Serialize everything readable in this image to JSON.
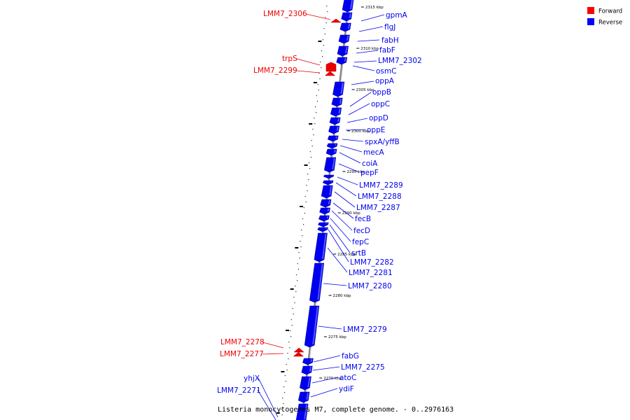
{
  "legend": [
    {
      "label": "Forward",
      "color": "#ff0000"
    },
    {
      "label": "Reverse",
      "color": "#0000ff"
    }
  ],
  "caption": "Listeria monocytogenes M7, complete genome. - 0..2976163",
  "colors": {
    "forward": "#ee0000",
    "reverse": "#0000ee",
    "backbone": "#888888"
  },
  "ticks": [
    "2315 kbp",
    "2310 kbp",
    "2305 kbp",
    "2300 kbp",
    "2295 kbp",
    "2290 kbp",
    "2285 kbp",
    "2280 kbp",
    "2275 kbp",
    "2270 kbp"
  ],
  "genes": [
    {
      "name": "LMM7_2306",
      "strand": "forward"
    },
    {
      "name": "trpS",
      "strand": "forward"
    },
    {
      "name": "LMM7_2299",
      "strand": "forward"
    },
    {
      "name": "LMM7_2278",
      "strand": "forward"
    },
    {
      "name": "LMM7_2277",
      "strand": "forward"
    },
    {
      "name": "gpmA",
      "strand": "reverse"
    },
    {
      "name": "flgJ",
      "strand": "reverse"
    },
    {
      "name": "fabH",
      "strand": "reverse"
    },
    {
      "name": "fabF",
      "strand": "reverse"
    },
    {
      "name": "LMM7_2302",
      "strand": "reverse"
    },
    {
      "name": "osmC",
      "strand": "reverse"
    },
    {
      "name": "oppA",
      "strand": "reverse"
    },
    {
      "name": "oppB",
      "strand": "reverse"
    },
    {
      "name": "oppC",
      "strand": "reverse"
    },
    {
      "name": "oppD",
      "strand": "reverse"
    },
    {
      "name": "oppE",
      "strand": "reverse"
    },
    {
      "name": "spxA/yffB",
      "strand": "reverse"
    },
    {
      "name": "mecA",
      "strand": "reverse"
    },
    {
      "name": "coiA",
      "strand": "reverse"
    },
    {
      "name": "pepF",
      "strand": "reverse"
    },
    {
      "name": "LMM7_2289",
      "strand": "reverse"
    },
    {
      "name": "LMM7_2288",
      "strand": "reverse"
    },
    {
      "name": "LMM7_2287",
      "strand": "reverse"
    },
    {
      "name": "fecB",
      "strand": "reverse"
    },
    {
      "name": "fecD",
      "strand": "reverse"
    },
    {
      "name": "fepC",
      "strand": "reverse"
    },
    {
      "name": "srtB",
      "strand": "reverse"
    },
    {
      "name": "LMM7_2282",
      "strand": "reverse"
    },
    {
      "name": "LMM7_2281",
      "strand": "reverse"
    },
    {
      "name": "LMM7_2280",
      "strand": "reverse"
    },
    {
      "name": "LMM7_2279",
      "strand": "reverse"
    },
    {
      "name": "fabG",
      "strand": "reverse"
    },
    {
      "name": "LMM7_2275",
      "strand": "reverse"
    },
    {
      "name": "atoC",
      "strand": "reverse"
    },
    {
      "name": "ydiF",
      "strand": "reverse"
    },
    {
      "name": "yhjX",
      "strand": "reverse"
    },
    {
      "name": "LMM7_2271",
      "strand": "reverse"
    }
  ]
}
